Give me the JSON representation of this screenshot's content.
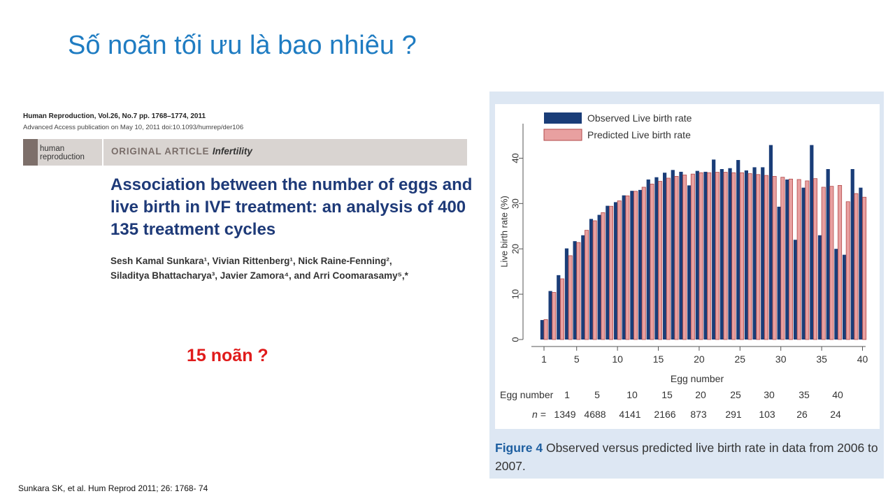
{
  "slide": {
    "title": "Số noãn tối ưu là bao nhiêu ?",
    "callout": "15 noãn ?",
    "citation": "Sunkara SK, et al. Hum Reprod 2011; 26: 1768- 74"
  },
  "paper": {
    "journal_line": "Human Reproduction, Vol.26, No.7 pp. 1768–1774, 2011",
    "access_line": "Advanced Access publication on May 10, 2011   doi:10.1093/humrep/der106",
    "logo_line1": "human",
    "logo_line2": "reproduction",
    "article_type": "ORIGINAL ARTICLE",
    "article_subject": "Infertility",
    "title": "Association between the number of eggs and live birth in IVF treatment: an analysis of 400 135 treatment cycles",
    "authors_line1": "Sesh Kamal Sunkara¹, Vivian Rittenberg¹, Nick Raine-Fenning²,",
    "authors_line2": "Siladitya Bhattacharya³, Javier Zamora⁴, and Arri Coomarasamy⁵,*"
  },
  "figure": {
    "label": "Figure 4",
    "caption": "Observed versus predicted live birth rate in data from 2006 to 2007."
  },
  "chart_data": {
    "type": "bar",
    "xlabel": "Egg number",
    "ylabel": "Live birth rate (%)",
    "ylim": [
      0,
      45
    ],
    "yticks": [
      0,
      10,
      20,
      30,
      40
    ],
    "xticks": [
      1,
      5,
      10,
      15,
      20,
      25,
      30,
      35,
      40
    ],
    "legend_position": "top-left",
    "categories": [
      1,
      2,
      3,
      4,
      5,
      6,
      7,
      8,
      9,
      10,
      11,
      12,
      13,
      14,
      15,
      16,
      17,
      18,
      19,
      20,
      21,
      22,
      23,
      24,
      25,
      26,
      27,
      28,
      29,
      30,
      31,
      32,
      33,
      34,
      35,
      36,
      37,
      38,
      39,
      40
    ],
    "series": [
      {
        "name": "Observed Live birth rate",
        "color": "#1a3d78",
        "values": [
          4.3,
          10.7,
          14.2,
          20.1,
          21.7,
          23.0,
          26.6,
          27.5,
          29.5,
          30.3,
          31.8,
          32.8,
          33.0,
          35.3,
          35.8,
          36.8,
          37.4,
          37.0,
          34.0,
          37.2,
          37.0,
          39.7,
          37.6,
          37.8,
          39.6,
          37.3,
          38.0,
          38.0,
          42.9,
          29.3,
          35.3,
          22.0,
          33.5,
          42.9,
          23.0,
          37.6,
          20.0,
          18.7,
          37.6,
          33.5
        ]
      },
      {
        "name": "Predicted Live birth rate",
        "color": "#e8a0a0",
        "values": [
          4.4,
          10.4,
          13.4,
          18.5,
          21.4,
          24.1,
          26.2,
          28.0,
          29.4,
          30.6,
          31.7,
          32.7,
          33.6,
          34.3,
          34.9,
          35.6,
          36.0,
          36.3,
          36.5,
          36.8,
          36.8,
          36.9,
          36.9,
          36.8,
          36.8,
          36.6,
          36.4,
          36.2,
          36.0,
          35.8,
          35.4,
          35.3,
          35.0,
          35.5,
          33.6,
          33.8,
          34.0,
          30.4,
          32.2,
          31.4
        ]
      }
    ],
    "n_table": {
      "header_label": "Egg number",
      "n_label": "n =",
      "egg_numbers": [
        "1",
        "5",
        "10",
        "15",
        "20",
        "25",
        "30",
        "35",
        "40"
      ],
      "n_values": [
        "1349",
        "4688",
        "4141",
        "2166",
        "873",
        "291",
        "103",
        "26",
        "24"
      ]
    }
  }
}
